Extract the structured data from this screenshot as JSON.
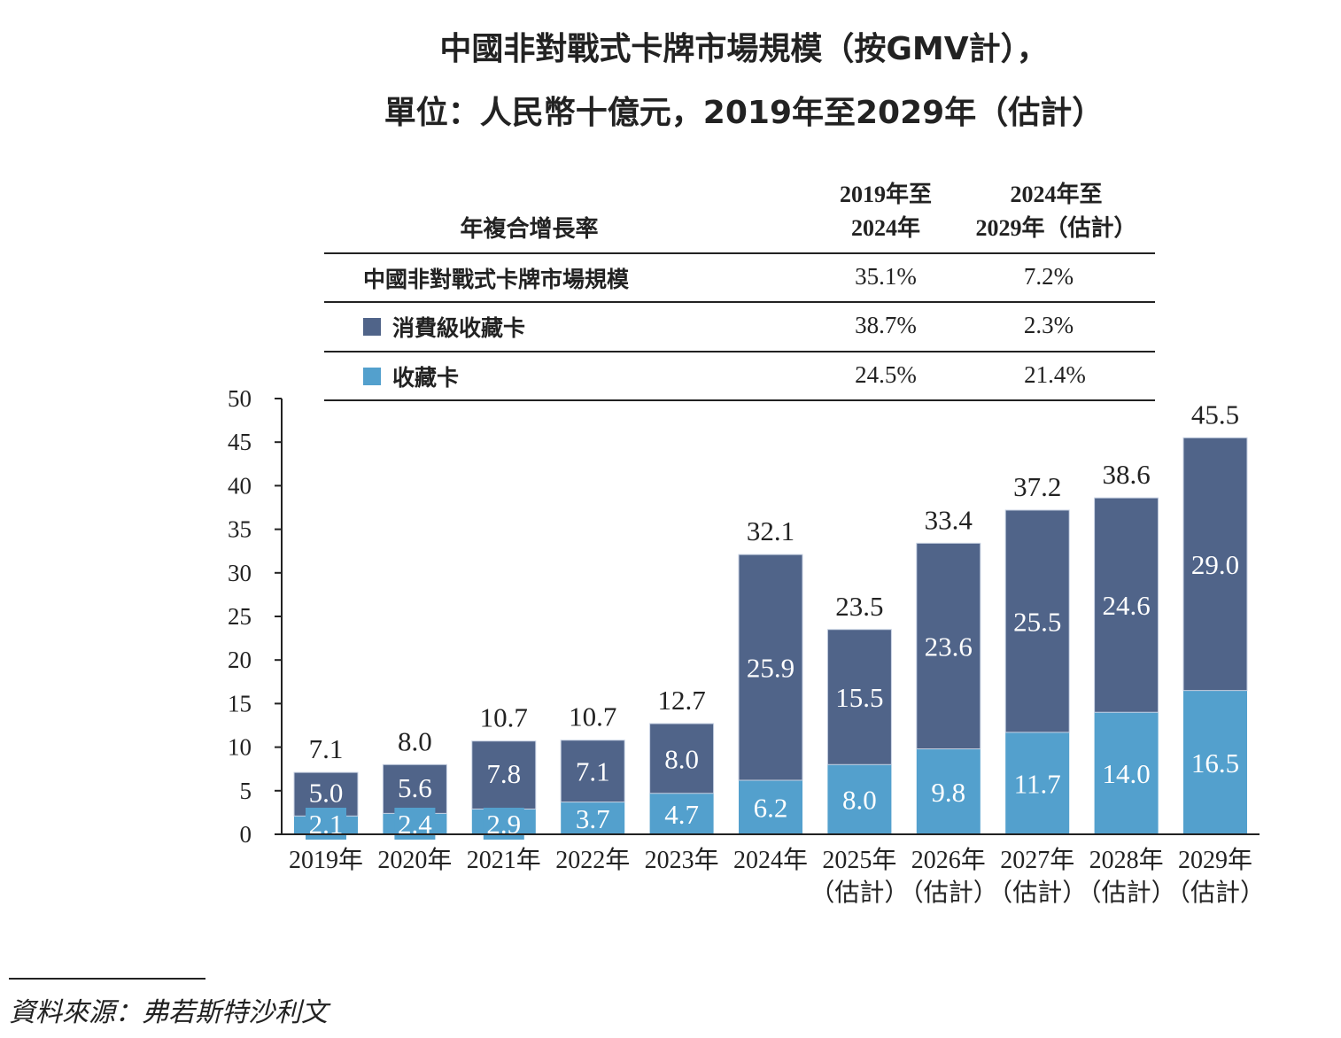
{
  "title_line1": "中國非對戰式卡牌市場規模（按GMV計），",
  "title_line2": "單位：人民幣十億元，2019年至2029年（估計）",
  "cagr_table": {
    "header_label": "年複合增長率",
    "col1_line1": "2019年至",
    "col1_line2": "2024年",
    "col2_line1": "2024年至",
    "col2_line2": "2029年（估計）",
    "rows": [
      {
        "label": "中國非對戰式卡牌市場規模",
        "c1": "35.1%",
        "c2": "7.2%"
      },
      {
        "label": "消費級收藏卡",
        "c1": "38.7%",
        "c2": "2.3%"
      },
      {
        "label": "收藏卡",
        "c1": "24.5%",
        "c2": "21.4%"
      }
    ]
  },
  "colors": {
    "consumer": "#506489",
    "collectible": "#53a0cd",
    "label_box": "#53a0cd"
  },
  "chart_data": {
    "type": "bar",
    "stacked": true,
    "categories": [
      "2019年",
      "2020年",
      "2021年",
      "2022年",
      "2023年",
      "2024年",
      "2025年",
      "2026年",
      "2027年",
      "2028年",
      "2029年"
    ],
    "category_sublabels": [
      "",
      "",
      "",
      "",
      "",
      "",
      "（估計）",
      "（估計）",
      "（估計）",
      "（估計）",
      "（估計）"
    ],
    "series": [
      {
        "name": "收藏卡",
        "values": [
          2.1,
          2.4,
          2.9,
          3.7,
          4.7,
          6.2,
          8.0,
          9.8,
          11.7,
          14.0,
          16.5
        ]
      },
      {
        "name": "消費級收藏卡",
        "values": [
          5.0,
          5.6,
          7.8,
          7.1,
          8.0,
          25.9,
          15.5,
          23.6,
          25.5,
          24.6,
          29.0
        ]
      }
    ],
    "totals": [
      "7.1",
      "8.0",
      "10.7",
      "10.7",
      "12.7",
      "32.1",
      "23.5",
      "33.4",
      "37.2",
      "38.6",
      "45.5"
    ],
    "yticks": [
      0,
      5,
      10,
      15,
      20,
      25,
      30,
      35,
      40,
      45,
      50
    ],
    "ylim": [
      0,
      50
    ],
    "grid": false
  },
  "source": "資料來源：弗若斯特沙利文"
}
